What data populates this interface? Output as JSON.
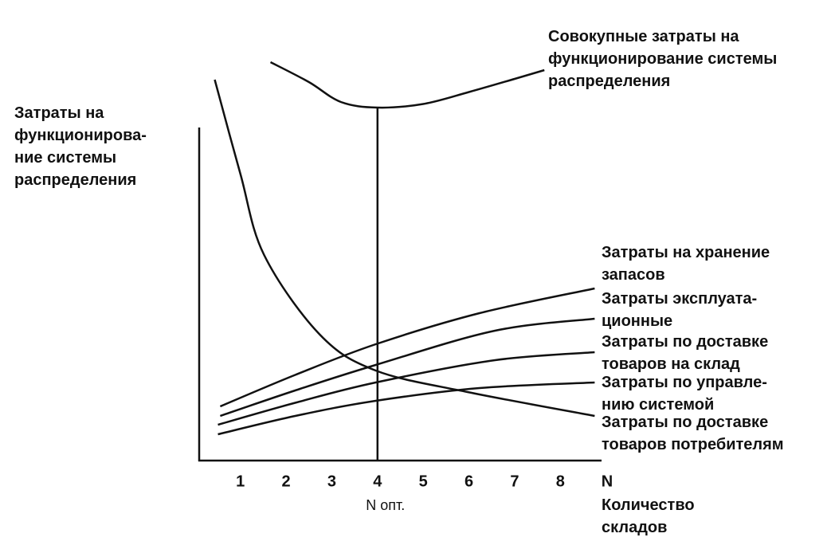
{
  "chart_data": {
    "type": "line",
    "y_label": "Затраты на\nфункционирова-\nние системы\nраспределения",
    "x_label": "Количество\nскладов",
    "x_axis_symbol": "N",
    "optimum_x": 4,
    "optimum_label": "N опт.",
    "xlim": [
      0.1,
      8.9
    ],
    "ylim": [
      0,
      100
    ],
    "xticks": [
      1,
      2,
      3,
      4,
      5,
      6,
      7,
      8
    ],
    "series": [
      {
        "name": "Совокупные затраты на\nфункционирование системы\nраспределения",
        "color": "#111111",
        "x": [
          1.66,
          2.5,
          3.2,
          4,
          5,
          6,
          7,
          7.65
        ],
        "values": [
          100,
          95,
          90,
          88.6,
          89.5,
          92.5,
          95.8,
          98
        ]
      },
      {
        "name": "Затраты на хранение\nзапасов",
        "color": "#111111",
        "x": [
          0.56,
          2.2,
          3.96,
          6.23,
          8.75
        ],
        "values": [
          13.6,
          21.5,
          29.2,
          37,
          43.2
        ]
      },
      {
        "name": "Затраты эксплуата-\nционные",
        "color": "#111111",
        "x": [
          0.56,
          2.2,
          3.96,
          6.57,
          8.75
        ],
        "values": [
          11.2,
          17.6,
          24,
          32.6,
          35.6
        ]
      },
      {
        "name": "Затраты по доставке\nтоваров на склад",
        "color": "#111111",
        "x": [
          0.51,
          2.2,
          3.96,
          6.57,
          8.75
        ],
        "values": [
          9,
          14.5,
          19.6,
          25.2,
          27.2
        ]
      },
      {
        "name": "Затраты по управле-\nнию системой",
        "color": "#111111",
        "x": [
          0.51,
          2.2,
          3.96,
          6.23,
          8.75
        ],
        "values": [
          6.6,
          11.2,
          15,
          18.2,
          19.6
        ]
      },
      {
        "name": "Затраты по доставке\nтоваров потребителям",
        "color": "#111111",
        "x": [
          0.44,
          1.0,
          1.52,
          2.74,
          3.96,
          5.97,
          8.75
        ],
        "values": [
          95.6,
          72,
          51.6,
          31.6,
          22.6,
          17.2,
          11.2
        ]
      }
    ]
  }
}
